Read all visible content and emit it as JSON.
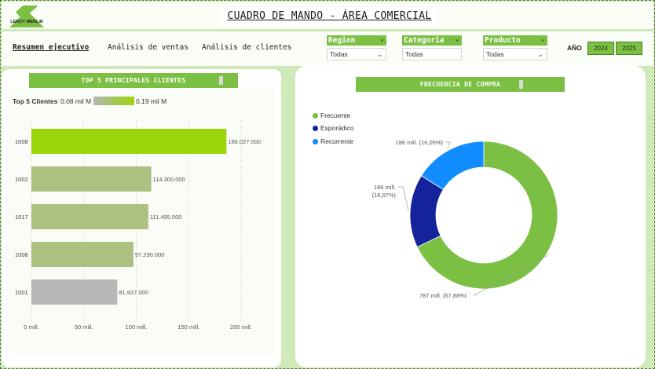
{
  "header": {
    "title": "CUADRO DE MANDO - ÁREA COMERCIAL",
    "logo_text": "LEROY MERLIN"
  },
  "nav": {
    "tabs": [
      {
        "label": "Resumen ejecutivo",
        "active": true
      },
      {
        "label": "Análisis de ventas",
        "active": false
      },
      {
        "label": "Análisis de clientes",
        "active": false
      }
    ]
  },
  "filters": [
    {
      "label": "Region",
      "value": "Todas"
    },
    {
      "label": "Categoria",
      "value": "Todas"
    },
    {
      "label": "Producto",
      "value": "Todas"
    }
  ],
  "year_filter": {
    "label": "AÑO",
    "options": [
      "2024",
      "2025"
    ]
  },
  "colors": {
    "accent": "#7bc043",
    "bar_top": "#9bd60a",
    "bar_mid": "#acc080",
    "bar_low": "#b7b7b7",
    "frecuente": "#7bc043",
    "esporadico": "#14239c",
    "recurrente": "#118dff"
  },
  "top_clients": {
    "title": "TOP 5 PRINCIPALES CLIENTES",
    "legend_title": "Top 5 Clientes",
    "legend_min": "0,08 mil M",
    "legend_max": "0,19 mil M"
  },
  "frequency": {
    "title": "FRECUENCIA DE COMPRA"
  },
  "chart_data": [
    {
      "type": "bar",
      "orientation": "horizontal",
      "title": "TOP 5 PRINCIPALES CLIENTES",
      "categories": [
        "1008",
        "1002",
        "1017",
        "1006",
        "1001"
      ],
      "values": [
        186027000,
        114300000,
        111495000,
        97290000,
        81927000
      ],
      "data_labels": [
        "186.027.000",
        "114.300.000",
        "111.495.000",
        "97.290.000",
        "81.927.000"
      ],
      "x_ticks": [
        "0 mill.",
        "50 mill.",
        "100 mill.",
        "150 mill.",
        "200 mill."
      ],
      "xlim": [
        0,
        200000000
      ],
      "grid": true
    },
    {
      "type": "pie",
      "variant": "donut",
      "title": "FRECUENCIA DE COMPRA",
      "series": [
        {
          "name": "Frecuente",
          "value": 787,
          "label": "787 mill. (67,88%)"
        },
        {
          "name": "Esporádico",
          "value": 186.3,
          "label": "186 mill. (16,07%)"
        },
        {
          "name": "Recurrente",
          "value": 186,
          "label": "186 mill. (16,05%)"
        }
      ],
      "legend_position": "top-left"
    }
  ]
}
